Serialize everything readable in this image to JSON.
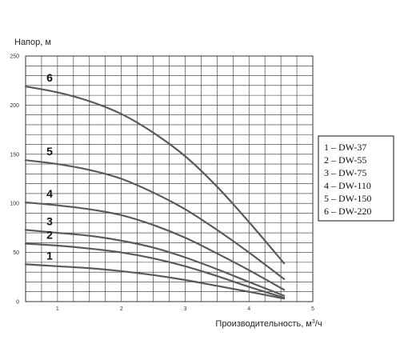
{
  "chart_data": {
    "type": "line",
    "ylabel": "Напор, м",
    "xlabel": "Производительность, м³/ч",
    "xlim": [
      0.5,
      5
    ],
    "ylim": [
      0,
      250
    ],
    "x_ticks": [
      "1",
      "2",
      "3",
      "4",
      "5"
    ],
    "y_ticks": [
      "0",
      "50",
      "100",
      "150",
      "200",
      "250"
    ],
    "grid": true,
    "series": [
      {
        "name": "1 – DW-37",
        "label": "1",
        "x": [
          0.5,
          1,
          1.5,
          2,
          2.5,
          3,
          3.5,
          4,
          4.55
        ],
        "y": [
          38,
          36,
          34,
          31,
          27,
          22,
          16,
          10,
          3
        ]
      },
      {
        "name": "2 – DW-55",
        "label": "2",
        "x": [
          0.5,
          1,
          1.5,
          2,
          2.5,
          3,
          3.5,
          4,
          4.55
        ],
        "y": [
          59,
          57,
          54,
          50,
          44,
          36,
          26,
          15,
          4
        ]
      },
      {
        "name": "3 – DW-75",
        "label": "3",
        "x": [
          0.5,
          1,
          1.5,
          2,
          2.5,
          3,
          3.5,
          4,
          4.55
        ],
        "y": [
          73,
          70,
          67,
          62,
          55,
          45,
          33,
          20,
          6
        ]
      },
      {
        "name": "4 – DW-110",
        "label": "4",
        "x": [
          0.5,
          1,
          1.5,
          2,
          2.5,
          3,
          3.5,
          4,
          4.55
        ],
        "y": [
          101,
          98,
          94,
          88,
          78,
          65,
          49,
          32,
          12
        ]
      },
      {
        "name": "5 – DW-150",
        "label": "5",
        "x": [
          0.5,
          1,
          1.5,
          2,
          2.5,
          3,
          3.5,
          4,
          4.55
        ],
        "y": [
          144,
          140,
          134,
          125,
          111,
          94,
          73,
          50,
          23
        ]
      },
      {
        "name": "6 – DW-220",
        "label": "6",
        "x": [
          0.5,
          1,
          1.5,
          2,
          2.5,
          3,
          3.5,
          4,
          4.55
        ],
        "y": [
          219,
          213,
          204,
          191,
          172,
          148,
          117,
          81,
          39
        ]
      }
    ],
    "legend": {
      "placement": "right",
      "entries": [
        "1 – DW-37",
        "2 – DW-55",
        "3 – DW-75",
        "4 – DW-110",
        "5 – DW-150",
        "6 – DW-220"
      ]
    }
  },
  "colors": {
    "curve": "#5a5a5a",
    "grid": "#2b2b2b",
    "background": "#ffffff"
  }
}
